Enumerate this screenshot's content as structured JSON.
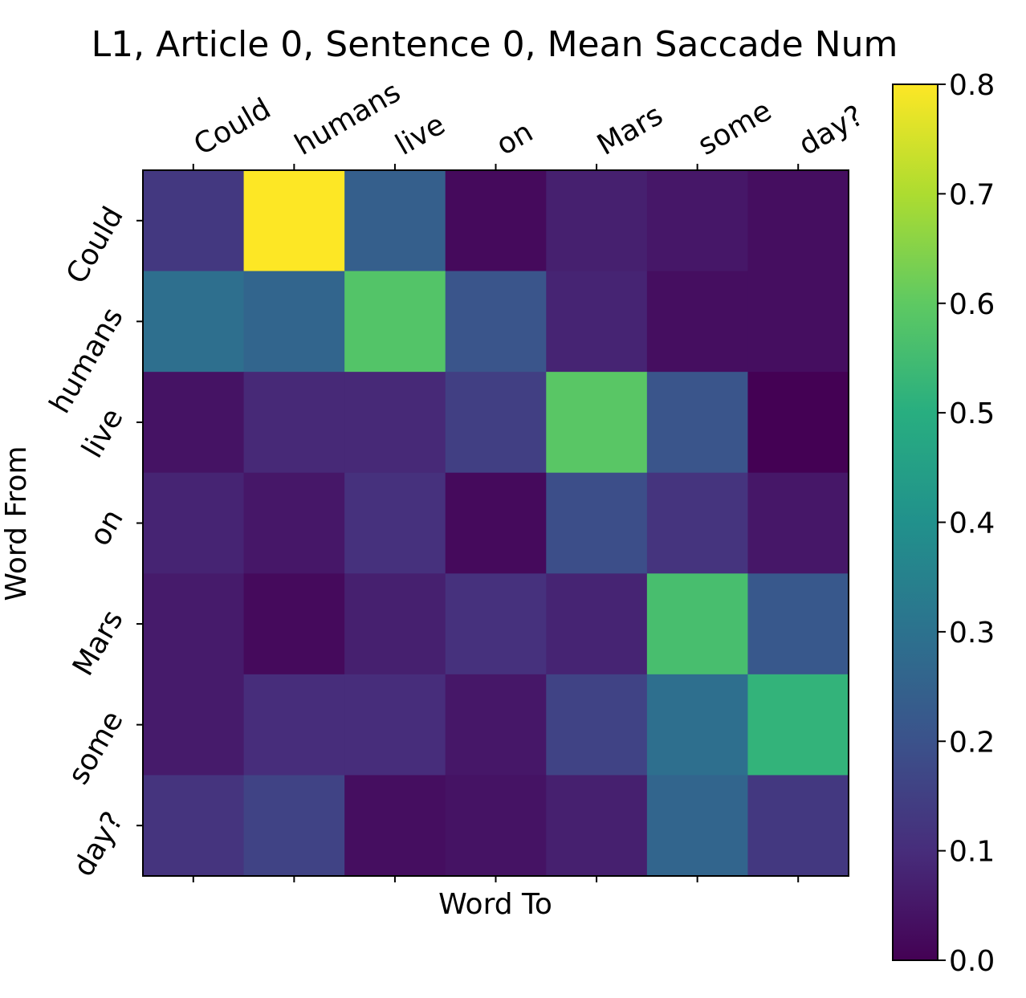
{
  "chart_data": {
    "type": "heatmap",
    "title": "L1, Article 0, Sentence 0, Mean  Saccade Num",
    "xlabel": "Word To",
    "ylabel": "Word From",
    "x_categories": [
      "Could",
      "humans",
      "live",
      "on",
      "Mars",
      "some",
      "day?"
    ],
    "y_categories": [
      "Could",
      "humans",
      "live",
      "on",
      "Mars",
      "some",
      "day?"
    ],
    "values": [
      [
        0.13,
        0.8,
        0.24,
        0.02,
        0.07,
        0.05,
        0.03
      ],
      [
        0.29,
        0.26,
        0.58,
        0.21,
        0.08,
        0.03,
        0.03
      ],
      [
        0.04,
        0.09,
        0.09,
        0.15,
        0.59,
        0.21,
        0.0
      ],
      [
        0.08,
        0.05,
        0.11,
        0.02,
        0.19,
        0.12,
        0.05
      ],
      [
        0.06,
        0.02,
        0.07,
        0.11,
        0.08,
        0.56,
        0.22
      ],
      [
        0.06,
        0.1,
        0.1,
        0.05,
        0.16,
        0.29,
        0.52
      ],
      [
        0.12,
        0.16,
        0.03,
        0.04,
        0.07,
        0.26,
        0.13
      ]
    ],
    "colormap": "viridis",
    "colorbar": {
      "min": 0.0,
      "max": 0.8,
      "ticks": [
        "0.0",
        "0.1",
        "0.2",
        "0.3",
        "0.4",
        "0.5",
        "0.6",
        "0.7",
        "0.8"
      ]
    },
    "x_tick_position": "top",
    "grid": false
  }
}
